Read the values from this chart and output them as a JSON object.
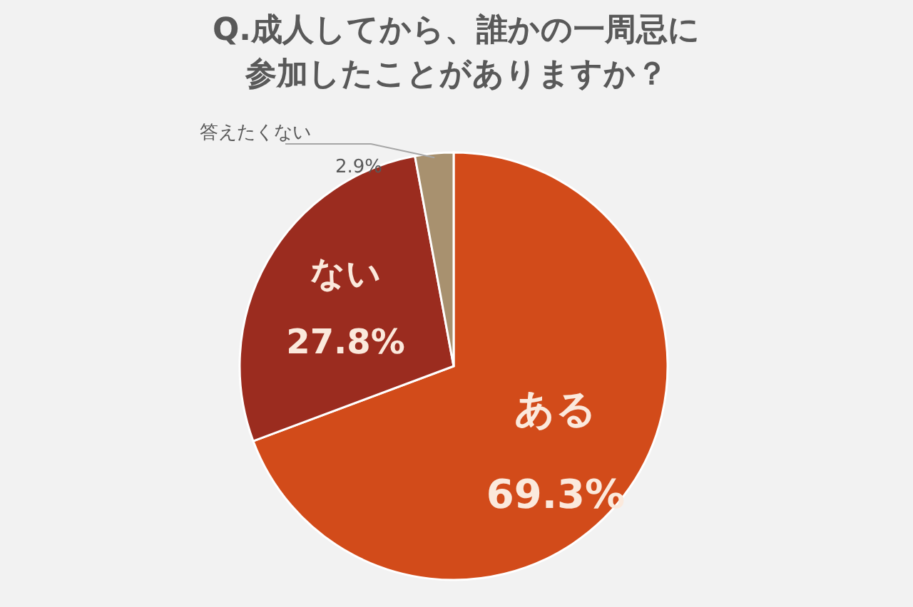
{
  "chart_data": {
    "type": "pie",
    "title": "Q.成人してから、誰かの一周忌に参加したことがありますか？",
    "categories": [
      "ある",
      "ない",
      "答えたくない"
    ],
    "values": [
      69.3,
      27.8,
      2.9
    ],
    "value_labels": [
      "69.3%",
      "27.8%",
      "2.9%"
    ],
    "colors": [
      "#d24b1a",
      "#9b2c1f",
      "#a8916f"
    ],
    "legend": false
  }
}
